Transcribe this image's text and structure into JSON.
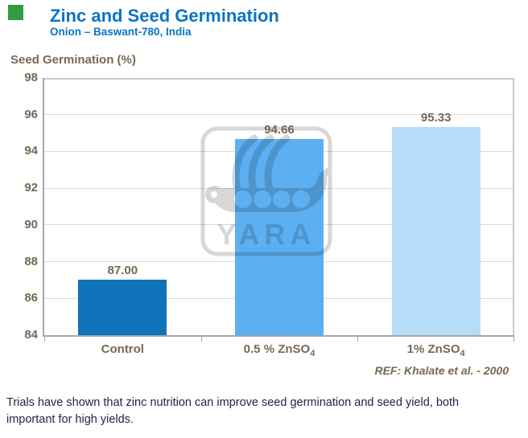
{
  "brand": {
    "square_color": "#2f9e41"
  },
  "header": {
    "title": "Zinc and Seed Germination",
    "subtitle": "Onion – Baswant-780, India",
    "title_color": "#0b74c2"
  },
  "chart_data": {
    "type": "bar",
    "title": "Zinc and Seed Germination",
    "subtitle": "Onion – Baswant-780, India",
    "ylabel": "Seed Germination (%)",
    "xlabel": "",
    "ylim": [
      84,
      98
    ],
    "yticks": [
      98,
      96,
      94,
      92,
      90,
      88,
      86,
      84
    ],
    "grid": true,
    "legend": false,
    "categories": [
      "Control",
      "0.5 % ZnSO4",
      "1% ZnSO4"
    ],
    "category_labels": [
      {
        "pre": "Control",
        "sub": ""
      },
      {
        "pre": "0.5 % ZnSO",
        "sub": "4"
      },
      {
        "pre": "1% ZnSO",
        "sub": "4"
      }
    ],
    "values": [
      87.0,
      94.66,
      95.33
    ],
    "value_labels": [
      "87.00",
      "94.66",
      "95.33"
    ],
    "bar_colors": [
      "#1072b8",
      "#5cb0f2",
      "#b7dcf8"
    ],
    "axis_color": "#a6a6a6",
    "grid_color": "#dadada",
    "tick_label_color": "#776853"
  },
  "watermark": {
    "text": "YARA",
    "color": "#d7d7d7"
  },
  "reference": "REF: Khalate et al. -  2000",
  "caption": {
    "text": "Trials have shown that zinc nutrition can improve seed germination and seed yield, both important for high yields.",
    "color": "#232343"
  }
}
